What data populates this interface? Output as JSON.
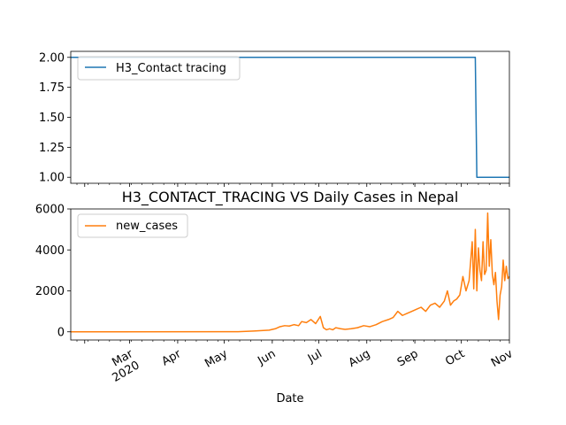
{
  "chart_data": [
    {
      "type": "line",
      "title": "",
      "xlabel": "",
      "ylabel": "",
      "ylim": [
        0.95,
        2.05
      ],
      "yticks": [
        1.0,
        1.25,
        1.5,
        1.75,
        2.0
      ],
      "ytick_labels": [
        "1.00",
        "1.25",
        "1.50",
        "1.75",
        "2.00"
      ],
      "xlim": [
        "2020-01-23",
        "2020-11-01"
      ],
      "series": [
        {
          "name": "H3_Contact tracing",
          "color": "#1f77b4",
          "x": [
            "2020-01-23",
            "2020-10-10",
            "2020-10-11",
            "2020-11-01"
          ],
          "values": [
            2,
            2,
            1,
            1
          ]
        }
      ],
      "legend": "upper-left",
      "grid": false
    },
    {
      "type": "line",
      "title": "H3_CONTACT_TRACING VS Daily Cases in Nepal",
      "xlabel": "Date",
      "ylabel": "",
      "ylim": [
        -400,
        6000
      ],
      "yticks": [
        0,
        2000,
        4000,
        6000
      ],
      "ytick_labels": [
        "0",
        "2000",
        "4000",
        "6000"
      ],
      "xlim": [
        "2020-01-23",
        "2020-11-01"
      ],
      "xticks": [
        "2020-03-01",
        "2020-04-01",
        "2020-05-01",
        "2020-06-01",
        "2020-07-01",
        "2020-08-01",
        "2020-09-01",
        "2020-10-01",
        "2020-11-01"
      ],
      "xtick_labels": [
        [
          "Mar",
          "2020"
        ],
        [
          "Apr"
        ],
        [
          "May"
        ],
        [
          "Jun"
        ],
        [
          "Jul"
        ],
        [
          "Aug"
        ],
        [
          "Sep"
        ],
        [
          "Oct"
        ],
        [
          "Nov"
        ]
      ],
      "series": [
        {
          "name": "new_cases",
          "color": "#ff7f0e",
          "x": [
            "2020-01-23",
            "2020-05-10",
            "2020-05-15",
            "2020-05-20",
            "2020-05-25",
            "2020-05-30",
            "2020-06-03",
            "2020-06-06",
            "2020-06-09",
            "2020-06-12",
            "2020-06-15",
            "2020-06-18",
            "2020-06-20",
            "2020-06-23",
            "2020-06-26",
            "2020-06-29",
            "2020-07-02",
            "2020-07-04",
            "2020-07-06",
            "2020-07-08",
            "2020-07-10",
            "2020-07-12",
            "2020-07-15",
            "2020-07-18",
            "2020-07-22",
            "2020-07-26",
            "2020-07-30",
            "2020-08-03",
            "2020-08-07",
            "2020-08-11",
            "2020-08-15",
            "2020-08-18",
            "2020-08-21",
            "2020-08-24",
            "2020-08-27",
            "2020-08-30",
            "2020-09-02",
            "2020-09-05",
            "2020-09-08",
            "2020-09-11",
            "2020-09-14",
            "2020-09-17",
            "2020-09-20",
            "2020-09-22",
            "2020-09-24",
            "2020-09-26",
            "2020-09-28",
            "2020-09-30",
            "2020-10-02",
            "2020-10-04",
            "2020-10-06",
            "2020-10-08",
            "2020-10-09",
            "2020-10-10",
            "2020-10-11",
            "2020-10-12",
            "2020-10-13",
            "2020-10-14",
            "2020-10-15",
            "2020-10-16",
            "2020-10-17",
            "2020-10-18",
            "2020-10-19",
            "2020-10-20",
            "2020-10-21",
            "2020-10-22",
            "2020-10-23",
            "2020-10-24",
            "2020-10-25",
            "2020-10-26",
            "2020-10-27",
            "2020-10-28",
            "2020-10-29",
            "2020-10-30",
            "2020-10-31",
            "2020-11-01"
          ],
          "values": [
            0,
            5,
            20,
            40,
            60,
            80,
            150,
            250,
            300,
            280,
            350,
            300,
            500,
            450,
            600,
            400,
            750,
            200,
            100,
            150,
            100,
            200,
            150,
            120,
            150,
            200,
            300,
            250,
            350,
            500,
            600,
            700,
            1000,
            800,
            900,
            1000,
            1100,
            1200,
            1000,
            1300,
            1400,
            1200,
            1500,
            2000,
            1300,
            1500,
            1600,
            1800,
            2700,
            2000,
            2500,
            4400,
            2100,
            5000,
            2000,
            4100,
            3000,
            2500,
            4400,
            2800,
            3000,
            5800,
            3200,
            4500,
            2800,
            2300,
            2900,
            1500,
            600,
            1800,
            2200,
            3500,
            2500,
            3200,
            2600,
            2700
          ]
        }
      ],
      "legend": "upper-left",
      "grid": false
    }
  ]
}
